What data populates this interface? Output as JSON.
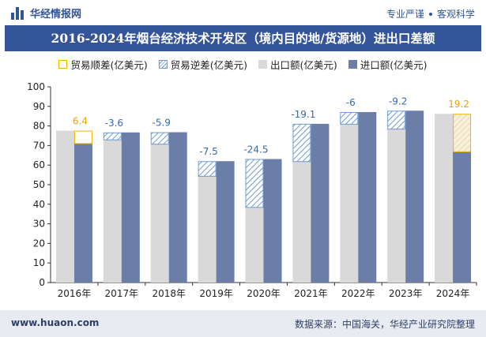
{
  "header": {
    "brand": "华经情报网",
    "tagline_left": "专业严谨",
    "tagline_right": "客观科学"
  },
  "title": "2016-2024年烟台经济技术开发区（境内目的地/货源地）进出口差额",
  "legend": [
    {
      "key": "surplus",
      "label": "贸易顺差(亿美元)"
    },
    {
      "key": "deficit",
      "label": "贸易逆差(亿美元)"
    },
    {
      "key": "export",
      "label": "出口额(亿美元)"
    },
    {
      "key": "import",
      "label": "进口额(亿美元)"
    }
  ],
  "colors": {
    "export": "#d9d9d9",
    "import": "#6a7ea7",
    "surplus": "#f0b400",
    "deficit": "#6e9bd4",
    "surplus_label": "#e8a400",
    "deficit_label": "#3a68a8",
    "title_bg": "#34559a"
  },
  "chart_data": {
    "type": "bar",
    "categories": [
      "2016年",
      "2017年",
      "2018年",
      "2019年",
      "2020年",
      "2021年",
      "2022年",
      "2023年",
      "2024年"
    ],
    "series": [
      {
        "name": "出口额(亿美元)",
        "values": [
          77.6,
          73.1,
          70.9,
          54.5,
          38.6,
          62.0,
          81.1,
          78.6,
          86.2
        ]
      },
      {
        "name": "进口额(亿美元)",
        "values": [
          71.2,
          76.7,
          76.8,
          62.0,
          63.1,
          81.1,
          87.1,
          87.8,
          67.0
        ]
      }
    ],
    "balance": [
      6.4,
      -3.6,
      -5.9,
      -7.5,
      -24.5,
      -19.1,
      -6,
      -9.2,
      19.2
    ],
    "balance_labels": [
      "6.4",
      "-3.6",
      "-5.9",
      "-7.5",
      "-24.5",
      "-19.1",
      "-6",
      "-9.2",
      "19.2"
    ],
    "ylim": [
      0,
      100
    ],
    "yticks": [
      0,
      10,
      20,
      30,
      40,
      50,
      60,
      70,
      80,
      90,
      100
    ],
    "grid": false
  },
  "footer": {
    "site": "www.huaon.com",
    "source": "数据来源：中国海关，华经产业研究院整理"
  }
}
